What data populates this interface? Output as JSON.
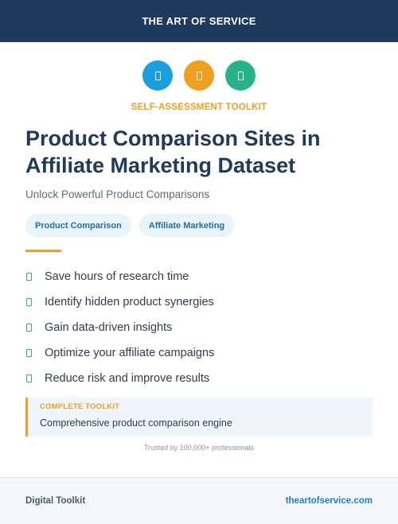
{
  "header": {
    "title": "THE ART OF SERVICE"
  },
  "icons": [
    {
      "name": "document-icon",
      "color": "#1aa0e0"
    },
    {
      "name": "document-icon",
      "color": "#f0a020"
    },
    {
      "name": "document-icon",
      "color": "#27b38a"
    }
  ],
  "kicker": "SELF-ASSESSMENT TOOLKIT",
  "title": "Product Comparison Sites in Affiliate Marketing Dataset",
  "subtitle": "Unlock Powerful Product Comparisons",
  "tags": [
    "Product Comparison",
    "Affiliate Marketing"
  ],
  "benefits": [
    "Save hours of research time",
    "Identify hidden product synergies",
    "Gain data-driven insights",
    "Optimize your affiliate campaigns",
    "Reduce risk and improve results"
  ],
  "callout": {
    "label": "COMPLETE TOOLKIT",
    "text": "Comprehensive product comparison engine"
  },
  "trusted": "Trusted by 100,000+ professionals",
  "footer": {
    "left": "Digital Toolkit",
    "right": "theartofservice.com"
  },
  "colors": {
    "navy": "#1e3a5c",
    "orange": "#f0a020",
    "green": "#27b38a",
    "blue": "#1aa0e0"
  }
}
